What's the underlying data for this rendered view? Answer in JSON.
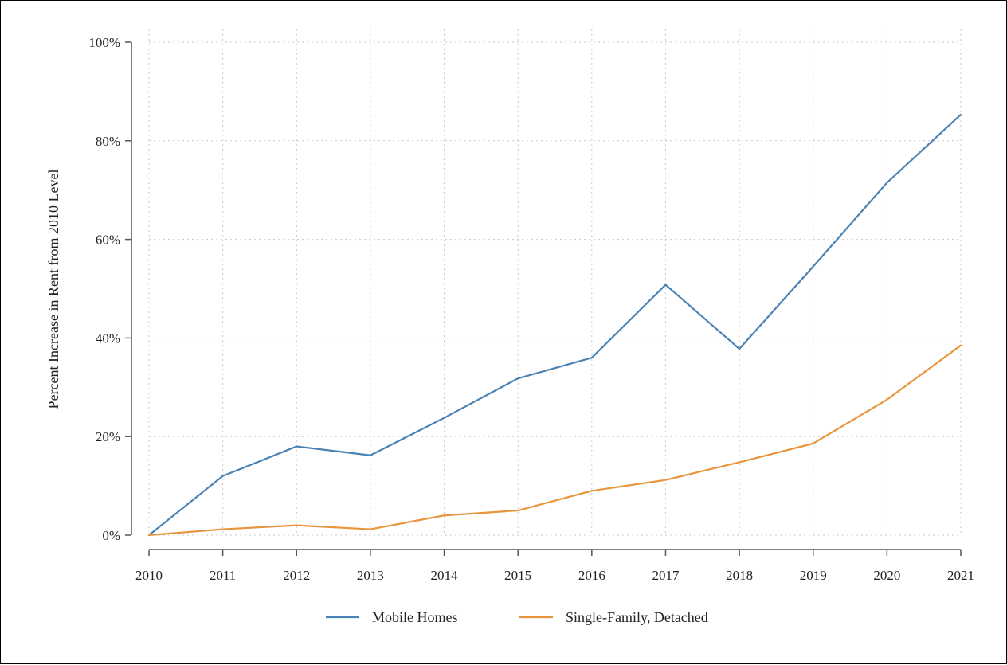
{
  "chart_data": {
    "type": "line",
    "title": "",
    "xlabel": "",
    "ylabel": "Percent Increase in Rent from 2010 Level",
    "x": [
      2010,
      2011,
      2012,
      2013,
      2014,
      2015,
      2016,
      2017,
      2018,
      2019,
      2020,
      2021
    ],
    "x_tick_labels": [
      "2010",
      "2011",
      "2012",
      "2013",
      "2014",
      "2015",
      "2016",
      "2017",
      "2018",
      "2019",
      "2020",
      "2021"
    ],
    "ylim": [
      0,
      100
    ],
    "y_ticks": [
      0,
      20,
      40,
      60,
      80,
      100
    ],
    "y_tick_labels": [
      "0%",
      "20%",
      "40%",
      "60%",
      "80%",
      "100%"
    ],
    "grid": true,
    "legend_position": "bottom",
    "series": [
      {
        "name": "Mobile Homes",
        "color": "#4a82b4",
        "values": [
          0,
          12,
          18,
          16.2,
          23.8,
          31.8,
          36,
          50.8,
          37.8,
          54.5,
          71.5,
          85.3
        ]
      },
      {
        "name": "Single-Family, Detached",
        "color": "#e8953c",
        "values": [
          0,
          1.2,
          2,
          1.2,
          4,
          5,
          9,
          11.2,
          14.8,
          18.6,
          27.5,
          38.5
        ]
      }
    ]
  }
}
